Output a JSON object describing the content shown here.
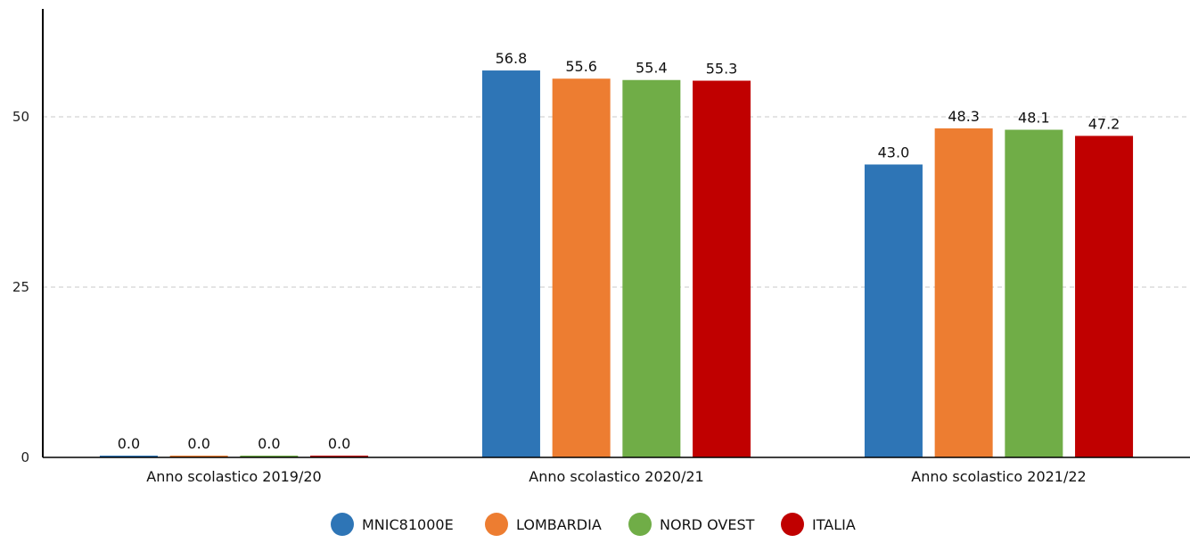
{
  "chart_data": {
    "type": "bar",
    "categories": [
      "Anno scolastico 2019/20",
      "Anno scolastico 2020/21",
      "Anno scolastico 2021/22"
    ],
    "series": [
      {
        "name": "MNIC81000E",
        "color": "#2e75b6",
        "values": [
          0.0,
          56.8,
          43.0
        ]
      },
      {
        "name": "LOMBARDIA",
        "color": "#ed7d31",
        "values": [
          0.0,
          55.6,
          48.3
        ]
      },
      {
        "name": "NORD OVEST",
        "color": "#70ad47",
        "values": [
          0.0,
          55.4,
          48.1
        ]
      },
      {
        "name": "ITALIA",
        "color": "#c00000",
        "values": [
          0.0,
          55.3,
          47.2
        ]
      }
    ],
    "value_labels": [
      [
        "0.0",
        "56.8",
        "43.0"
      ],
      [
        "0.0",
        "55.6",
        "48.3"
      ],
      [
        "0.0",
        "55.4",
        "48.1"
      ],
      [
        "0.0",
        "55.3",
        "47.2"
      ]
    ],
    "yticks": [
      0,
      25,
      50
    ],
    "ytick_labels": [
      "0",
      "25",
      "50"
    ],
    "ylim": [
      0,
      65
    ],
    "grid": true,
    "legend_position": "bottom-center",
    "title": "",
    "xlabel": "",
    "ylabel": ""
  }
}
